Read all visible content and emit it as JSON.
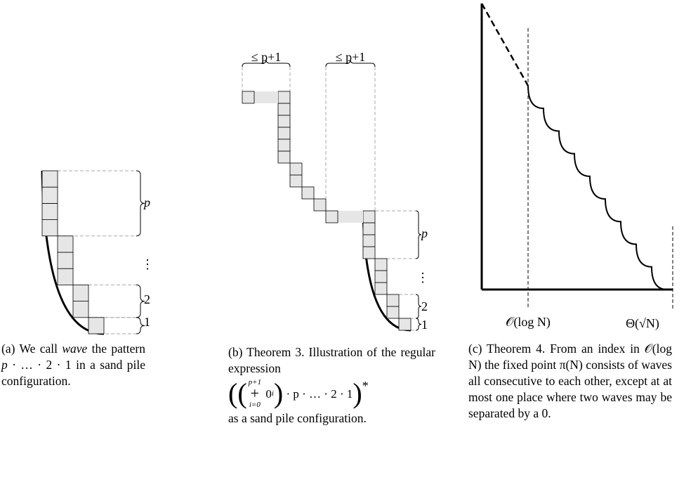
{
  "figure_a": {
    "labels": {
      "p": "p",
      "dots": "⋮",
      "two": "2",
      "one": "1"
    },
    "caption": [
      "(a) We call ",
      "wave",
      " the pattern ",
      "p",
      " · … · 2 · 1 in a sand pile configuration."
    ]
  },
  "figure_b": {
    "top_labels": [
      "≤ p+1",
      "≤ p+1"
    ],
    "labels": {
      "p": "p",
      "dots": "⋮",
      "two": "2",
      "one": "1"
    },
    "caption_before": "(b) Theorem 3. Illustration of the regular expression",
    "expression": {
      "upper": "p+1",
      "operator": "+",
      "lower": "i=0",
      "base": "0",
      "exponent": "i",
      "tail": "· p · … · 2 · 1",
      "star": "*"
    },
    "caption_after": "as a sand pile configuration."
  },
  "figure_c": {
    "axis_labels": [
      "𝒪(log N)",
      "Θ(√N)"
    ],
    "caption": "(c) Theorem 4.  From an index in 𝒪(log N) the fixed point π(N) consists of waves all consecutive to each other, except at at most one place where two waves may be separated by a 0."
  }
}
